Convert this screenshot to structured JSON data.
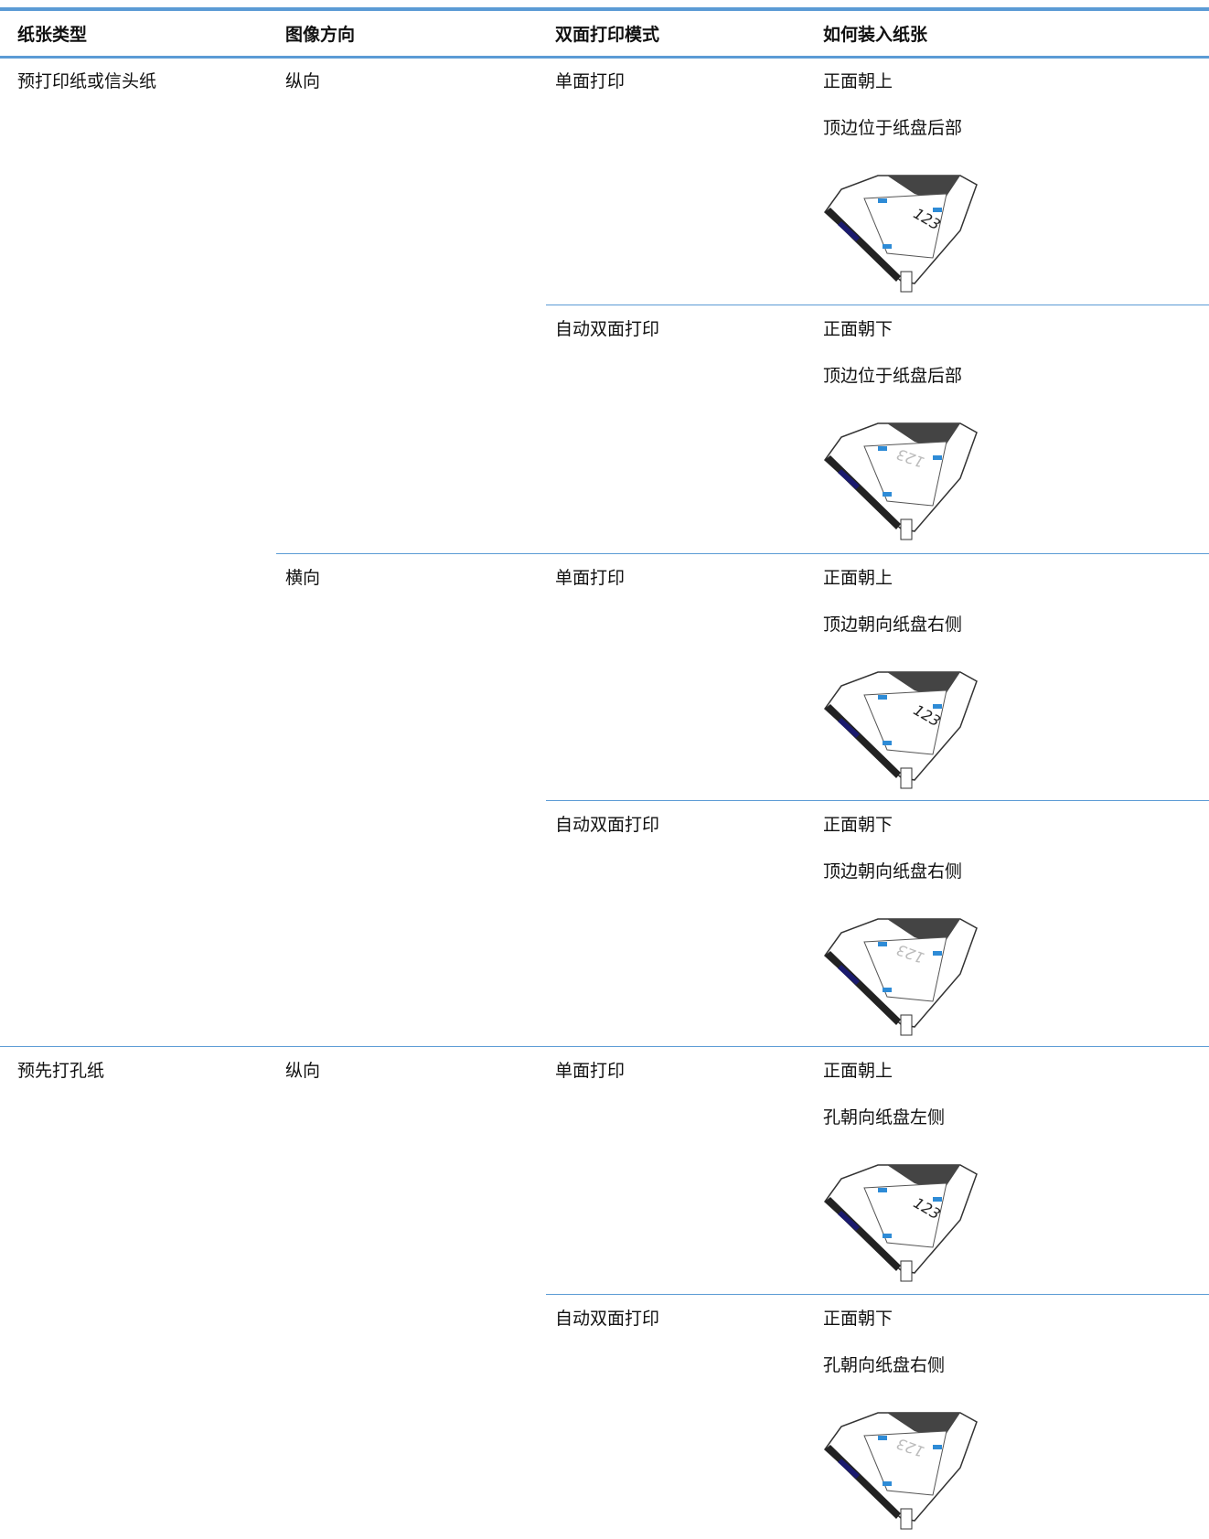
{
  "table": {
    "headers": [
      "纸张类型",
      "图像方向",
      "双面打印模式",
      "如何装入纸张"
    ],
    "rows": [
      {
        "paper_type": "预打印纸或信头纸",
        "orientation": "纵向",
        "duplex_mode": "单面打印",
        "loading": [
          "正面朝上",
          "顶边位于纸盘后部"
        ],
        "figure_text": "123"
      },
      {
        "duplex_mode": "自动双面打印",
        "loading": [
          "正面朝下",
          "顶边位于纸盘后部"
        ],
        "figure_text": "123"
      },
      {
        "orientation": "横向",
        "duplex_mode": "单面打印",
        "loading": [
          "正面朝上",
          "顶边朝向纸盘右侧"
        ],
        "figure_text": "123"
      },
      {
        "duplex_mode": "自动双面打印",
        "loading": [
          "正面朝下",
          "顶边朝向纸盘右侧"
        ],
        "figure_text": "123"
      },
      {
        "paper_type": "预先打孔纸",
        "orientation": "纵向",
        "duplex_mode": "单面打印",
        "loading": [
          "正面朝上",
          "孔朝向纸盘左侧"
        ],
        "figure_text": "123"
      },
      {
        "duplex_mode": "自动双面打印",
        "loading": [
          "正面朝下",
          "孔朝向纸盘右侧"
        ],
        "figure_text": "123"
      }
    ]
  }
}
